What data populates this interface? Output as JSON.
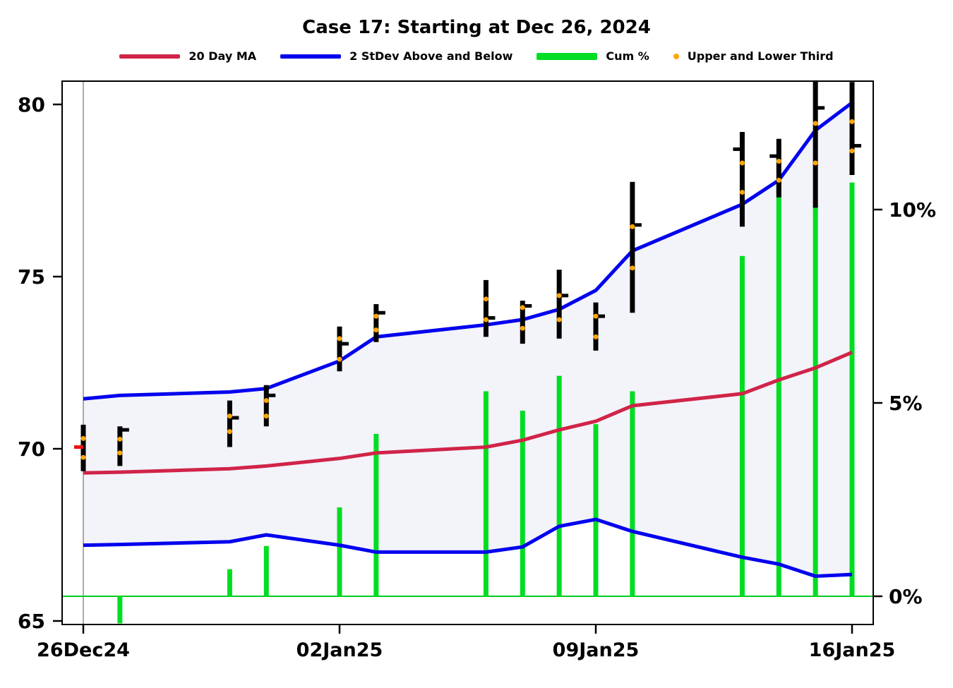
{
  "page": {
    "background": "#ffffff"
  },
  "chart_data": {
    "type": "ohlc+line+bar",
    "title": "Case 17:  Starting at Dec 26, 2024",
    "legend": [
      {
        "label": "20 Day MA",
        "color": "#d02448",
        "style": "line"
      },
      {
        "label": "2 StDev Above and Below",
        "color": "#0000ee",
        "style": "line"
      },
      {
        "label": "Cum %",
        "color": "#00dd22",
        "style": "thick"
      },
      {
        "label": "Upper and Lower Third",
        "color": "#ffa500",
        "style": "dot"
      }
    ],
    "x_axis": {
      "tick_labels": [
        "26Dec24",
        "02Jan25",
        "09Jan25",
        "16Jan25"
      ],
      "tick_days": [
        0,
        7,
        14,
        21
      ],
      "grid": false
    },
    "y_left": {
      "ticks": [
        65,
        70,
        75,
        80
      ],
      "range": [
        64.9,
        80.8
      ]
    },
    "y_right": {
      "tick_labels": [
        "0%",
        "5%",
        "10%"
      ],
      "tick_values": [
        0,
        5,
        10
      ]
    },
    "trading_dates": [
      "26Dec24",
      "27Dec24",
      "30Dec24",
      "31Dec24",
      "02Jan25",
      "03Jan25",
      "06Jan25",
      "07Jan25",
      "08Jan25",
      "09Jan25",
      "10Jan25",
      "13Jan25",
      "14Jan25",
      "15Jan25",
      "16Jan25"
    ],
    "band_fill_color": "#f3f3fa",
    "start_line_day": 0,
    "price_bars": [
      {
        "day": 0,
        "high": 70.7,
        "low": 69.35,
        "open": 70.05,
        "open_color": "#ee1111",
        "dots": [
          70.3,
          69.75
        ]
      },
      {
        "day": 1,
        "high": 70.65,
        "low": 69.5,
        "close": 70.55,
        "dots": [
          70.28,
          69.88
        ]
      },
      {
        "day": 4,
        "high": 71.4,
        "low": 70.05,
        "close": 70.9,
        "dots": [
          70.95,
          70.5
        ]
      },
      {
        "day": 5,
        "high": 71.85,
        "low": 70.65,
        "close": 71.55,
        "dots": [
          71.4,
          70.95
        ]
      },
      {
        "day": 7,
        "high": 73.55,
        "low": 72.25,
        "close": 73.05,
        "dots": [
          73.2,
          72.6
        ]
      },
      {
        "day": 8,
        "high": 74.2,
        "low": 73.1,
        "close": 73.95,
        "dots": [
          73.85,
          73.45
        ]
      },
      {
        "day": 11,
        "high": 74.9,
        "low": 73.25,
        "close": 73.8,
        "dots": [
          74.35,
          73.75
        ]
      },
      {
        "day": 12,
        "high": 74.3,
        "low": 73.05,
        "close": 74.15,
        "dots": [
          74.1,
          73.5
        ]
      },
      {
        "day": 13,
        "high": 75.2,
        "low": 73.2,
        "close": 74.45,
        "dots": [
          74.45,
          73.75
        ]
      },
      {
        "day": 14,
        "high": 74.25,
        "low": 72.85,
        "close": 73.85,
        "dots": [
          73.85,
          73.25
        ]
      },
      {
        "day": 15,
        "high": 77.75,
        "low": 73.95,
        "close": 76.5,
        "dots": [
          76.45,
          75.25
        ]
      },
      {
        "day": 18,
        "high": 79.2,
        "low": 76.45,
        "open": 78.7,
        "dots": [
          78.3,
          77.45
        ]
      },
      {
        "day": 19,
        "high": 79.0,
        "low": 77.3,
        "open": 78.5,
        "dots": [
          78.35,
          77.8
        ]
      },
      {
        "day": 20,
        "high": 80.7,
        "low": 77.0,
        "close": 79.9,
        "dots": [
          79.45,
          78.3
        ]
      },
      {
        "day": 21,
        "high": 80.65,
        "low": 77.95,
        "close": 78.8,
        "dots": [
          79.5,
          78.65
        ]
      }
    ],
    "ma20": {
      "name": "20 Day MA",
      "color": "#d02448",
      "days": [
        0,
        1,
        4,
        5,
        7,
        8,
        11,
        12,
        13,
        14,
        15,
        18,
        19,
        20,
        21
      ],
      "values": [
        69.3,
        69.32,
        69.42,
        69.5,
        69.72,
        69.88,
        70.05,
        70.25,
        70.55,
        70.8,
        71.25,
        71.6,
        72.0,
        72.35,
        72.8
      ]
    },
    "band_upper": {
      "name": "2 StDev Above",
      "color": "#0000ee",
      "days": [
        0,
        1,
        4,
        5,
        7,
        8,
        11,
        12,
        13,
        14,
        15,
        18,
        19,
        20,
        21
      ],
      "values": [
        71.45,
        71.55,
        71.65,
        71.75,
        72.55,
        73.25,
        73.6,
        73.75,
        74.05,
        74.6,
        75.75,
        77.1,
        77.8,
        79.25,
        80.05
      ]
    },
    "band_lower": {
      "name": "2 StDev Below",
      "color": "#0000ee",
      "days": [
        0,
        1,
        4,
        5,
        7,
        8,
        11,
        12,
        13,
        14,
        15,
        18,
        19,
        20,
        21
      ],
      "values": [
        67.2,
        67.22,
        67.3,
        67.5,
        67.2,
        67.0,
        67.0,
        67.15,
        67.75,
        67.95,
        67.6,
        66.85,
        66.65,
        66.3,
        66.35
      ]
    },
    "cum_pct": {
      "name": "Cum %",
      "color": "#00dd22",
      "days": [
        1,
        4,
        5,
        7,
        8,
        11,
        12,
        13,
        14,
        15,
        18,
        19,
        20,
        21
      ],
      "values": [
        -0.7,
        0.7,
        1.3,
        2.3,
        4.2,
        5.3,
        4.8,
        5.7,
        4.45,
        5.3,
        8.8,
        10.7,
        10.1,
        10.7
      ]
    },
    "thirds_dot_color": "#ffa500",
    "zero_line_color": "#00cc22",
    "start_line_color": "#909090"
  }
}
